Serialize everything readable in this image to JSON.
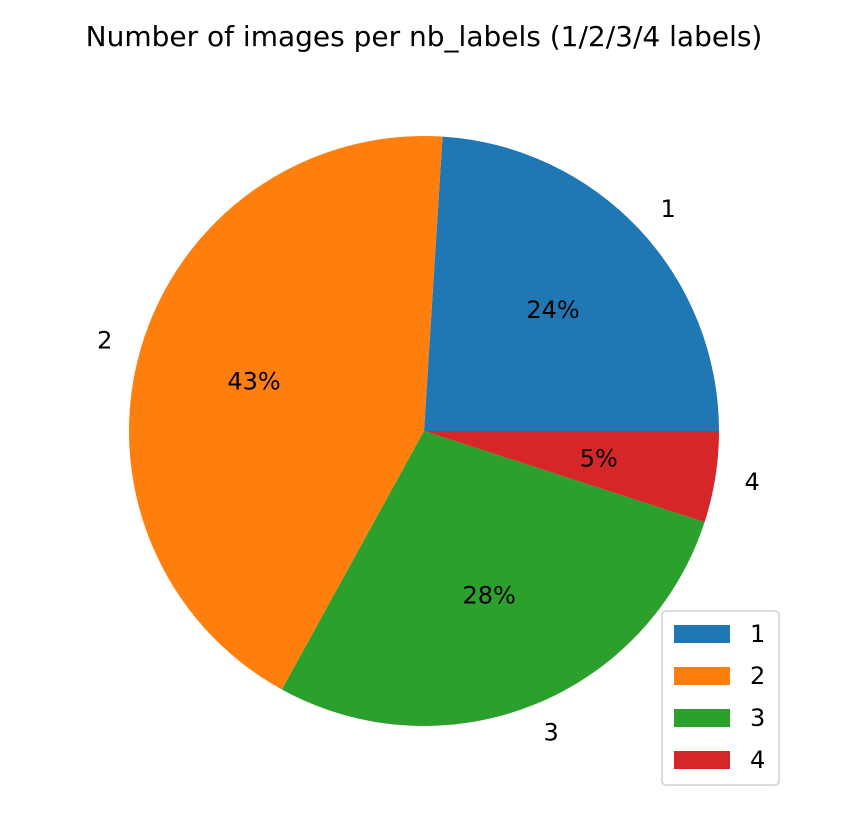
{
  "chart_data": {
    "type": "pie",
    "title": "Number of images per nb_labels (1/2/3/4 labels)",
    "categories": [
      "1",
      "2",
      "3",
      "4"
    ],
    "values": [
      24,
      43,
      28,
      5
    ],
    "percent_labels": [
      "24%",
      "43%",
      "28%",
      "5%"
    ],
    "colors": [
      "#1f77b4",
      "#ff7f0e",
      "#2ca02c",
      "#d62728"
    ],
    "start_angle_deg": 0,
    "direction": "counterclockwise",
    "legend": {
      "placement": "lower-right",
      "entries": [
        "1",
        "2",
        "3",
        "4"
      ]
    }
  }
}
